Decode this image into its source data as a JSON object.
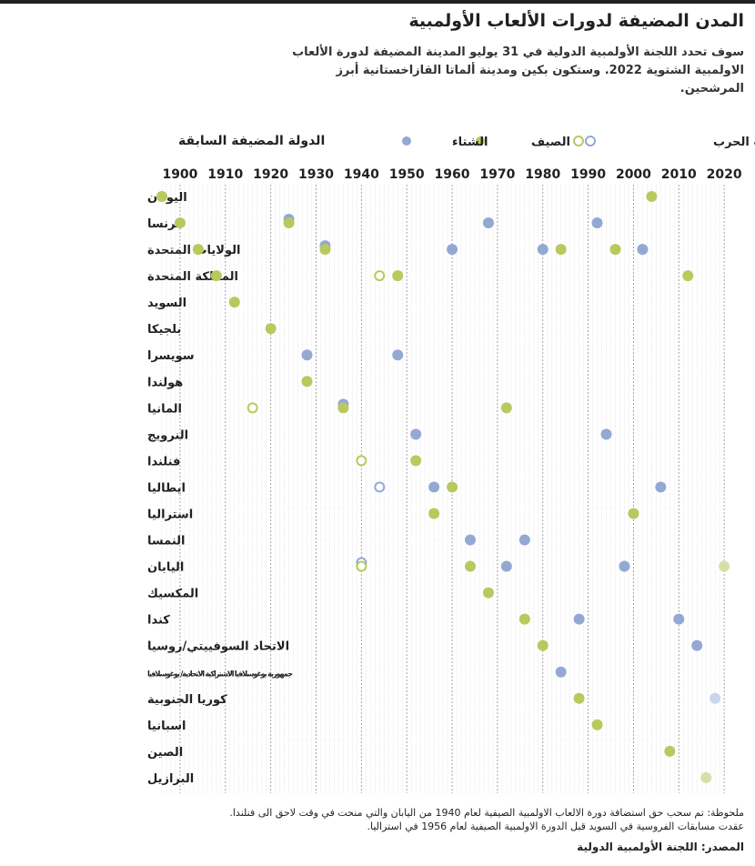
{
  "header": {
    "title": "المدن المضيفة لدورات الألعاب الأولمبية",
    "subtitle": "سوف تحدد اللجنة الأولمبية الدولية في 31 يوليو المدينة المضيفة لدورة الألعاب الاولمبية الشتوية 2022. وستكون بكين ومدينة ألماتا القازاخستانية أبرز المرشحين."
  },
  "colors": {
    "summer": "#b8c95e",
    "winter": "#93a9d3",
    "summer_light": "#d5e0a8",
    "winter_light": "#c9d6ea",
    "grid": "#c8c8c8",
    "text": "#231f20"
  },
  "chart_data": {
    "type": "scatter",
    "title": "المدن المضيفة لدورات الألعاب الأولمبية",
    "ylabel": "الدولة المضيفة السابقة",
    "xlabel": "",
    "xlim": [
      1896,
      2020
    ],
    "xticks": [
      1900,
      1910,
      1920,
      1930,
      1940,
      1950,
      1960,
      1970,
      1980,
      1990,
      2000,
      2010,
      2020
    ],
    "legend": {
      "winter": "الشتاء",
      "summer": "الصيف",
      "cancelled": "ألغيت بسبب الحرب"
    },
    "rows": [
      {
        "country": "اليونان",
        "summer": [
          1896,
          2004
        ],
        "winter": [],
        "cancelled_summer": [],
        "cancelled_winter": [],
        "future_summer": [],
        "future_winter": []
      },
      {
        "country": "فرنسا",
        "summer": [
          1900,
          1924
        ],
        "winter": [
          1924,
          1968,
          1992
        ],
        "cancelled_summer": [],
        "cancelled_winter": [],
        "future_summer": [],
        "future_winter": []
      },
      {
        "country": "الولايات المتحدة",
        "summer": [
          1904,
          1932,
          1984,
          1996
        ],
        "winter": [
          1932,
          1960,
          1980,
          2002
        ],
        "cancelled_summer": [],
        "cancelled_winter": [],
        "future_summer": [],
        "future_winter": []
      },
      {
        "country": "المملكة المتحدة",
        "summer": [
          1908,
          1948,
          2012
        ],
        "winter": [],
        "cancelled_summer": [
          1944
        ],
        "cancelled_winter": [],
        "future_summer": [],
        "future_winter": []
      },
      {
        "country": "السويد",
        "summer": [
          1912
        ],
        "winter": [],
        "cancelled_summer": [],
        "cancelled_winter": [],
        "future_summer": [],
        "future_winter": []
      },
      {
        "country": "بلجيكا",
        "summer": [
          1920
        ],
        "winter": [],
        "cancelled_summer": [],
        "cancelled_winter": [],
        "future_summer": [],
        "future_winter": []
      },
      {
        "country": "سويسرا",
        "summer": [],
        "winter": [
          1928,
          1948
        ],
        "cancelled_summer": [],
        "cancelled_winter": [],
        "future_summer": [],
        "future_winter": []
      },
      {
        "country": "هولندا",
        "summer": [
          1928
        ],
        "winter": [],
        "cancelled_summer": [],
        "cancelled_winter": [],
        "future_summer": [],
        "future_winter": []
      },
      {
        "country": "المانيا",
        "summer": [
          1936,
          1972
        ],
        "winter": [
          1936
        ],
        "cancelled_summer": [
          1916
        ],
        "cancelled_winter": [],
        "future_summer": [],
        "future_winter": []
      },
      {
        "country": "النرويج",
        "summer": [],
        "winter": [
          1952,
          1994
        ],
        "cancelled_summer": [],
        "cancelled_winter": [],
        "future_summer": [],
        "future_winter": []
      },
      {
        "country": "فنلندا",
        "summer": [
          1952
        ],
        "winter": [],
        "cancelled_summer": [
          1940
        ],
        "cancelled_winter": [],
        "future_summer": [],
        "future_winter": []
      },
      {
        "country": "ايطاليا",
        "summer": [
          1960
        ],
        "winter": [
          1956,
          2006
        ],
        "cancelled_summer": [],
        "cancelled_winter": [
          1944
        ],
        "future_summer": [],
        "future_winter": []
      },
      {
        "country": "استراليا",
        "summer": [
          1956,
          2000
        ],
        "winter": [],
        "cancelled_summer": [],
        "cancelled_winter": [],
        "future_summer": [],
        "future_winter": []
      },
      {
        "country": "النمسا",
        "summer": [],
        "winter": [
          1964,
          1976
        ],
        "cancelled_summer": [],
        "cancelled_winter": [],
        "future_summer": [],
        "future_winter": []
      },
      {
        "country": "اليابان",
        "summer": [
          1964
        ],
        "winter": [
          1972,
          1998
        ],
        "cancelled_summer": [
          1940
        ],
        "cancelled_winter": [
          1940
        ],
        "future_summer": [
          2020
        ],
        "future_winter": []
      },
      {
        "country": "المكسيك",
        "summer": [
          1968
        ],
        "winter": [],
        "cancelled_summer": [],
        "cancelled_winter": [],
        "future_summer": [],
        "future_winter": []
      },
      {
        "country": "كندا",
        "summer": [
          1976
        ],
        "winter": [
          1988,
          2010
        ],
        "cancelled_summer": [],
        "cancelled_winter": [],
        "future_summer": [],
        "future_winter": []
      },
      {
        "country": "الاتحاد السوفييتي/روسيا",
        "summer": [
          1980
        ],
        "winter": [
          2014
        ],
        "cancelled_summer": [],
        "cancelled_winter": [],
        "future_summer": [],
        "future_winter": []
      },
      {
        "country": "جمهورية يوغوسلافيا الاشتراكية الاتحادية/ يوغوسلافيا",
        "summer": [],
        "winter": [
          1984
        ],
        "cancelled_summer": [],
        "cancelled_winter": [],
        "future_summer": [],
        "future_winter": [],
        "small": true
      },
      {
        "country": "كوريا الجنوبية",
        "summer": [
          1988
        ],
        "winter": [],
        "cancelled_summer": [],
        "cancelled_winter": [],
        "future_summer": [],
        "future_winter": [
          2018
        ]
      },
      {
        "country": "اسبانيا",
        "summer": [
          1992
        ],
        "winter": [],
        "cancelled_summer": [],
        "cancelled_winter": [],
        "future_summer": [],
        "future_winter": []
      },
      {
        "country": "الصين",
        "summer": [
          2008
        ],
        "winter": [],
        "cancelled_summer": [],
        "cancelled_winter": [],
        "future_summer": [],
        "future_winter": []
      },
      {
        "country": "البرازيل",
        "summer": [],
        "winter": [],
        "cancelled_summer": [],
        "cancelled_winter": [],
        "future_summer": [
          2016
        ],
        "future_winter": []
      }
    ]
  },
  "notes": {
    "note1": "ملحوظة: تم سحب حق استضافة دورة الالعاب الاولمبية الصيفية لعام 1940 من اليابان والتي منحت في وقت لاحق الى فنلندا.",
    "note2": "عقدت مسابقات الفروسية في السويد قبل الدورة الاولمبية الصيفية لعام 1956 في استراليا.",
    "source": "المصدر: اللجنة الأولمبية الدولية"
  }
}
